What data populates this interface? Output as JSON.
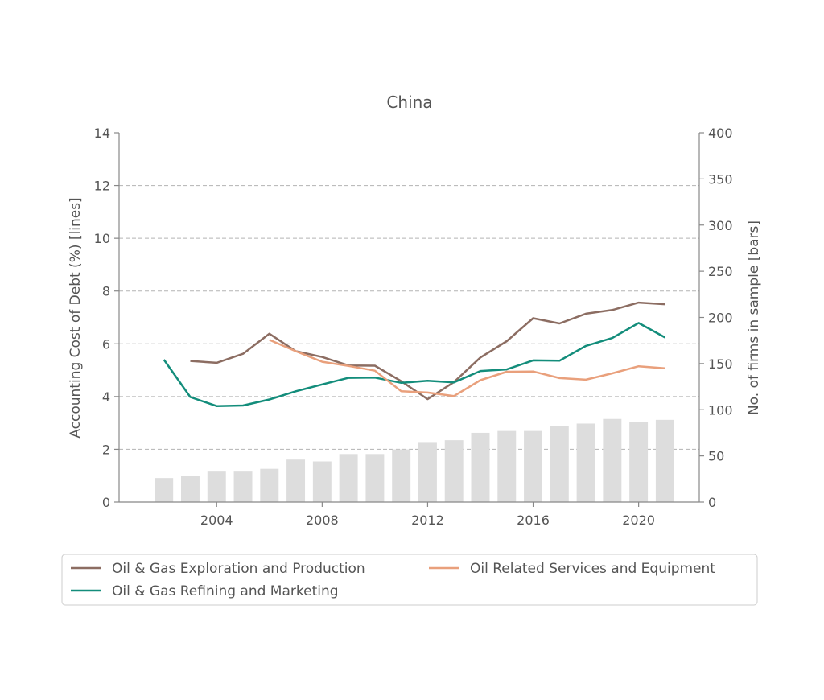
{
  "chart_data": {
    "type": "line",
    "title": "China",
    "xlabel": "",
    "ylabel": "Accounting Cost of Debt (%)  [lines]",
    "y2label": "No. of firms in sample  [bars]",
    "xlim": [
      2000.3,
      2022.3
    ],
    "ylim": [
      0,
      14
    ],
    "y2lim": [
      0,
      400
    ],
    "xticks": [
      2004,
      2008,
      2012,
      2016,
      2020
    ],
    "yticks": [
      0,
      2,
      4,
      6,
      8,
      10,
      12,
      14
    ],
    "y2ticks": [
      0,
      50,
      100,
      150,
      200,
      250,
      300,
      350,
      400
    ],
    "grid": "horizontal dashed",
    "legend_placement": "bottom",
    "bars": {
      "color": "#dddddd",
      "x": [
        2002,
        2003,
        2004,
        2005,
        2006,
        2007,
        2008,
        2009,
        2010,
        2011,
        2012,
        2013,
        2014,
        2015,
        2016,
        2017,
        2018,
        2019,
        2020,
        2021
      ],
      "values": [
        26,
        28,
        33,
        33,
        36,
        46,
        44,
        52,
        52,
        57,
        65,
        67,
        75,
        77,
        77,
        82,
        85,
        90,
        87,
        89
      ]
    },
    "series": [
      {
        "name": "Oil & Gas Exploration and Production",
        "color": "#8c6d62",
        "x": [
          2003,
          2004,
          2005,
          2006,
          2007,
          2008,
          2009,
          2010,
          2011,
          2012,
          2013,
          2014,
          2015,
          2016,
          2017,
          2018,
          2019,
          2020,
          2021
        ],
        "values": [
          5.35,
          5.28,
          5.62,
          6.38,
          5.72,
          5.5,
          5.18,
          5.17,
          4.58,
          3.9,
          4.55,
          5.48,
          6.1,
          6.97,
          6.77,
          7.14,
          7.28,
          7.56,
          7.5
        ]
      },
      {
        "name": "Oil & Gas Refining and Marketing",
        "color": "#138d7b",
        "x": [
          2002,
          2003,
          2004,
          2005,
          2006,
          2007,
          2008,
          2009,
          2010,
          2011,
          2012,
          2013,
          2014,
          2015,
          2016,
          2017,
          2018,
          2019,
          2020,
          2021
        ],
        "values": [
          5.4,
          3.98,
          3.64,
          3.66,
          3.89,
          4.2,
          4.46,
          4.71,
          4.72,
          4.52,
          4.6,
          4.54,
          4.97,
          5.03,
          5.37,
          5.36,
          5.92,
          6.22,
          6.79,
          6.24
        ]
      },
      {
        "name": "Oil Related Services and Equipment",
        "color": "#e9a07c",
        "x": [
          2006,
          2007,
          2008,
          2009,
          2010,
          2011,
          2012,
          2013,
          2014,
          2015,
          2016,
          2017,
          2018,
          2019,
          2020,
          2021
        ],
        "values": [
          6.15,
          5.72,
          5.32,
          5.16,
          4.98,
          4.2,
          4.15,
          4.02,
          4.62,
          4.94,
          4.95,
          4.7,
          4.64,
          4.88,
          5.15,
          5.07
        ]
      }
    ]
  }
}
